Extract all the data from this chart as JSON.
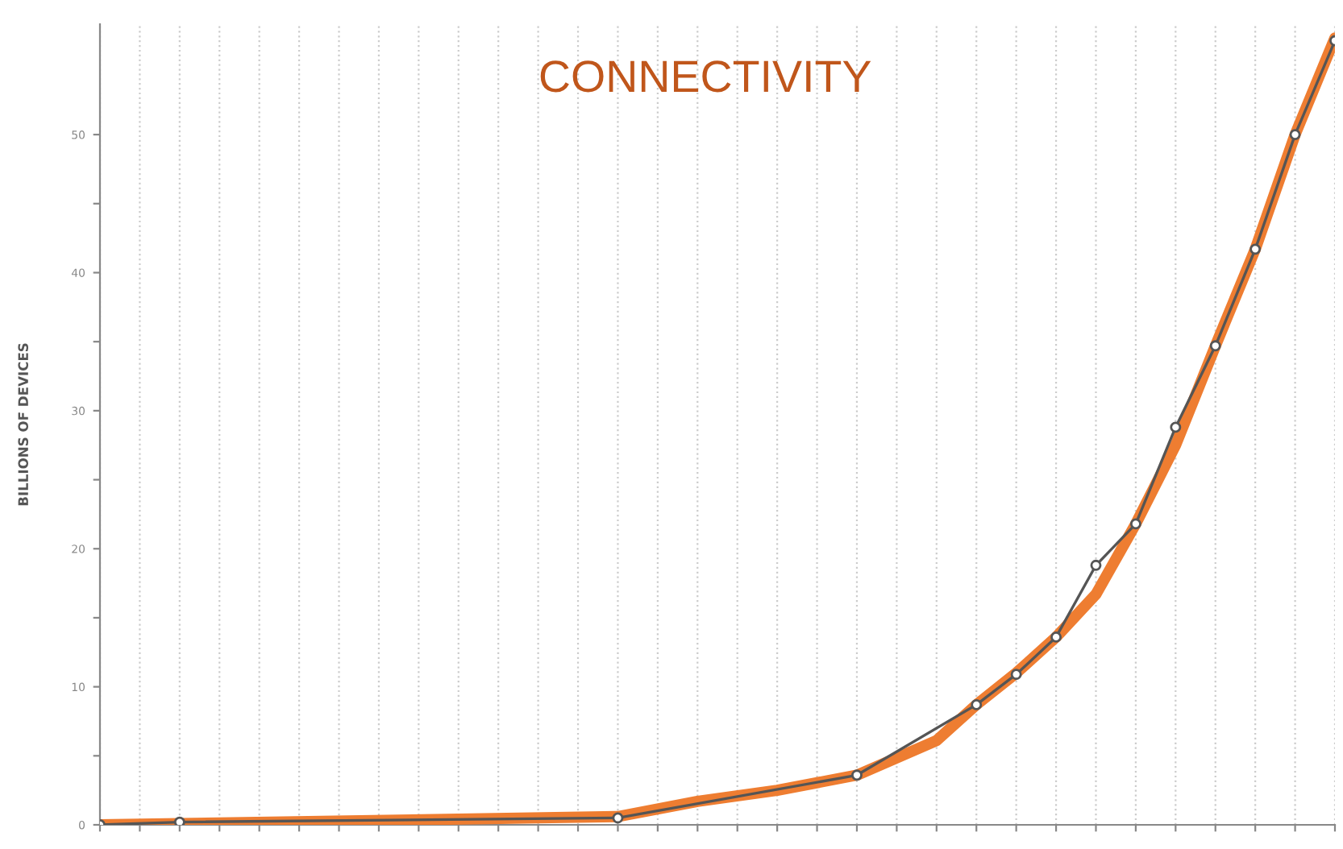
{
  "chart_data": {
    "type": "line",
    "title": "CONNECTIVITY",
    "ylabel": "BILLIONS OF DEVICES",
    "categories": [
      null,
      null,
      null,
      null,
      null,
      null,
      null,
      null,
      null,
      null,
      null,
      null,
      null,
      null,
      null,
      null,
      null,
      null,
      null,
      null,
      null,
      null,
      null,
      null,
      null,
      null,
      null,
      null,
      null,
      null,
      null,
      null
    ],
    "series": [
      {
        "color": "#555555",
        "marker": "circle",
        "values": [
          0,
          null,
          0.2,
          null,
          null,
          null,
          null,
          null,
          null,
          null,
          null,
          null,
          null,
          0.5,
          null,
          null,
          null,
          null,
          null,
          3.6,
          null,
          null,
          8.7,
          10.9,
          13.6,
          18.8,
          21.8,
          28.8,
          34.7,
          41.7,
          50,
          56.8
        ]
      },
      {
        "color": "#ee7d31",
        "marker": "none",
        "values": [
          0,
          null,
          null,
          null,
          null,
          null,
          null,
          null,
          null,
          null,
          null,
          null,
          null,
          0.6,
          null,
          1.7,
          null,
          2.5,
          null,
          3.6,
          null,
          6.1,
          8.7,
          11.0,
          13.6,
          16.7,
          21.8,
          27.5,
          34.7,
          41.7,
          50,
          57
        ]
      }
    ],
    "ylim": [
      0,
      58
    ],
    "yticks": [
      0,
      {
        "value": 5,
        "label": null
      },
      10,
      {
        "value": 15,
        "label": null
      },
      20,
      {
        "value": 25,
        "label": null
      },
      30,
      {
        "value": 35,
        "label": null
      },
      40,
      {
        "value": 45,
        "label": null
      },
      50
    ],
    "grid": "x"
  }
}
